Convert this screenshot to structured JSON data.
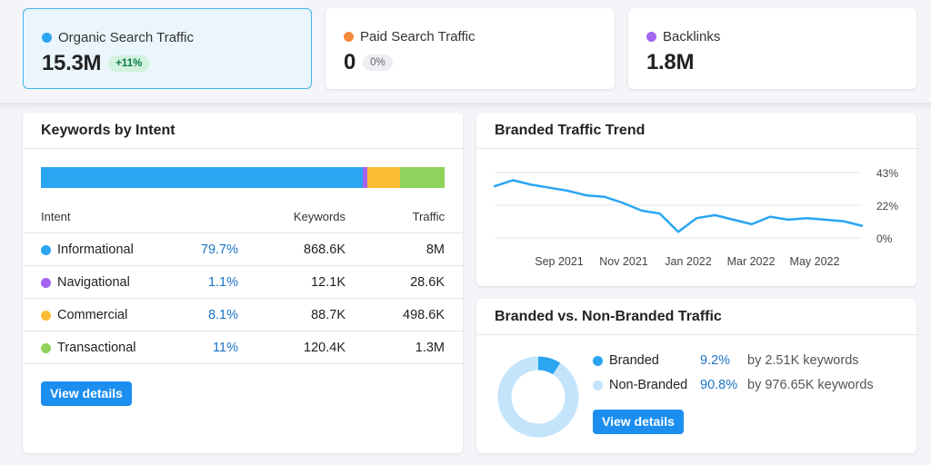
{
  "metrics": [
    {
      "label": "Organic Search Traffic",
      "value": "15.3M",
      "change": "+11%",
      "dot_color": "#2aa5f2",
      "active": true
    },
    {
      "label": "Paid Search Traffic",
      "value": "0",
      "change": "0%",
      "dot_color": "#f5883d",
      "active": false
    },
    {
      "label": "Backlinks",
      "value": "1.8M",
      "change": null,
      "dot_color": "#a463f2",
      "active": false
    }
  ],
  "keywords_by_intent": {
    "title": "Keywords by Intent",
    "columns": {
      "intent": "Intent",
      "keywords": "Keywords",
      "traffic": "Traffic"
    },
    "rows": [
      {
        "name": "Informational",
        "percent": "79.7%",
        "keywords": "868.6K",
        "traffic": "8M",
        "color": "#2aa5f2",
        "share": 79.7
      },
      {
        "name": "Navigational",
        "percent": "1.1%",
        "keywords": "12.1K",
        "traffic": "28.6K",
        "color": "#a463f2",
        "share": 1.1
      },
      {
        "name": "Commercial",
        "percent": "8.1%",
        "keywords": "88.7K",
        "traffic": "498.6K",
        "color": "#fbbd34",
        "share": 8.1
      },
      {
        "name": "Transactional",
        "percent": "11%",
        "keywords": "120.4K",
        "traffic": "1.3M",
        "color": "#8fd35c",
        "share": 11
      }
    ],
    "button": "View details"
  },
  "branded_trend": {
    "title": "Branded Traffic Trend",
    "y_ticks": [
      "43%",
      "22%",
      "0%"
    ],
    "x_ticks": [
      "Sep 2021",
      "Nov 2021",
      "Jan 2022",
      "Mar 2022",
      "May 2022"
    ],
    "line_color": "#2aa5f2",
    "chart_data": {
      "type": "line",
      "x": [
        "Aug 2021",
        "Aug 2021",
        "Sep 2021",
        "Sep 2021",
        "Oct 2021",
        "Oct 2021",
        "Nov 2021",
        "Nov 2021",
        "Dec 2021",
        "Dec 2021",
        "Jan 2022",
        "Jan 2022",
        "Feb 2022",
        "Feb 2022",
        "Mar 2022",
        "Mar 2022",
        "Apr 2022",
        "Apr 2022",
        "May 2022",
        "May 2022",
        "Jun 2022"
      ],
      "values": [
        34,
        38,
        35,
        33,
        31,
        28,
        27,
        23,
        18,
        16,
        4,
        13,
        15,
        12,
        9,
        14,
        12,
        13,
        12,
        11,
        8
      ],
      "ylim": [
        0,
        43
      ]
    }
  },
  "branded_vs_nonbranded": {
    "title": "Branded vs. Non-Branded Traffic",
    "items": [
      {
        "name": "Branded",
        "percent": "9.2%",
        "keywords": "by 2.51K keywords",
        "color": "#2aa5f2",
        "share": 9.2
      },
      {
        "name": "Non-Branded",
        "percent": "90.8%",
        "keywords": "by 976.65K keywords",
        "color": "#c3e4fb",
        "share": 90.8
      }
    ],
    "button": "View details"
  }
}
